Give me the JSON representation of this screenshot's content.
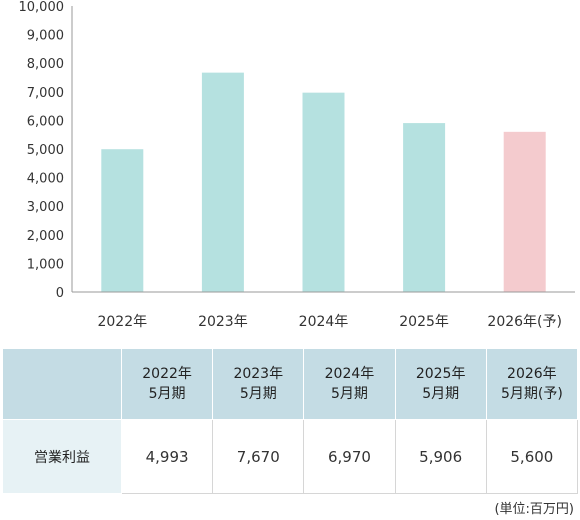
{
  "chart_data": {
    "type": "bar",
    "categories": [
      "2022年",
      "2023年",
      "2024年",
      "2025年",
      "2026年(予)"
    ],
    "values": [
      4993,
      7670,
      6970,
      5906,
      5600
    ],
    "title": "",
    "xlabel": "",
    "ylabel": "",
    "ylim": [
      0,
      10000
    ],
    "yticks": [
      "0",
      "1,000",
      "2,000",
      "3,000",
      "4,000",
      "5,000",
      "6,000",
      "7,000",
      "8,000",
      "9,000",
      "10,000"
    ],
    "grid": false,
    "bar_colors": [
      "#b5e1e0",
      "#b5e1e0",
      "#b5e1e0",
      "#b5e1e0",
      "#f4cbce"
    ]
  },
  "table": {
    "headers": [
      [
        "2022年",
        "5月期"
      ],
      [
        "2023年",
        "5月期"
      ],
      [
        "2024年",
        "5月期"
      ],
      [
        "2025年",
        "5月期"
      ],
      [
        "2026年",
        "5月期(予)"
      ]
    ],
    "row_label": "営業利益",
    "values": [
      "4,993",
      "7,670",
      "6,970",
      "5,906",
      "5,600"
    ]
  },
  "unit_note": "(単位:百万円)"
}
